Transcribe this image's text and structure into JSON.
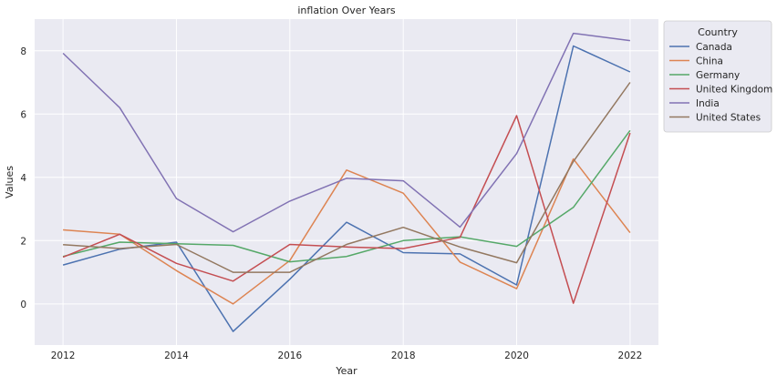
{
  "chart_data": {
    "type": "line",
    "title": "inflation Over Years",
    "xlabel": "Year",
    "ylabel": "Values",
    "x": [
      2012,
      2013,
      2014,
      2015,
      2016,
      2017,
      2018,
      2019,
      2020,
      2021,
      2022
    ],
    "xticks": [
      2012,
      2014,
      2016,
      2018,
      2020,
      2022
    ],
    "yticks": [
      0,
      2,
      4,
      6,
      8
    ],
    "xlim": [
      2011.5,
      2022.5
    ],
    "ylim": [
      -1.3,
      9.0
    ],
    "grid": true,
    "legend": {
      "title": "Country",
      "position": "upper right, outside"
    },
    "series": [
      {
        "name": "Canada",
        "color": "#4c72b0",
        "values": [
          1.23,
          1.73,
          1.95,
          -0.87,
          0.78,
          2.58,
          1.62,
          1.58,
          0.6,
          8.15,
          7.33
        ]
      },
      {
        "name": "China",
        "color": "#dd8452",
        "values": [
          2.34,
          2.2,
          1.05,
          0.0,
          1.37,
          4.23,
          3.5,
          1.32,
          0.48,
          4.58,
          2.25
        ]
      },
      {
        "name": "Germany",
        "color": "#55a868",
        "values": [
          1.5,
          1.95,
          1.9,
          1.85,
          1.33,
          1.5,
          2.0,
          2.12,
          1.82,
          3.05,
          5.48
        ]
      },
      {
        "name": "United Kingdom",
        "color": "#c44e52",
        "values": [
          1.48,
          2.2,
          1.28,
          0.72,
          1.88,
          1.8,
          1.75,
          2.1,
          5.95,
          0.02,
          5.4
        ]
      },
      {
        "name": "India",
        "color": "#8172b3",
        "values": [
          7.92,
          6.2,
          3.33,
          2.28,
          3.25,
          3.97,
          3.89,
          2.43,
          4.75,
          8.55,
          8.32
        ]
      },
      {
        "name": "United States",
        "color": "#937860",
        "values": [
          1.87,
          1.75,
          1.88,
          1.0,
          1.0,
          1.88,
          2.42,
          1.8,
          1.3,
          4.5,
          7.0
        ]
      }
    ]
  }
}
